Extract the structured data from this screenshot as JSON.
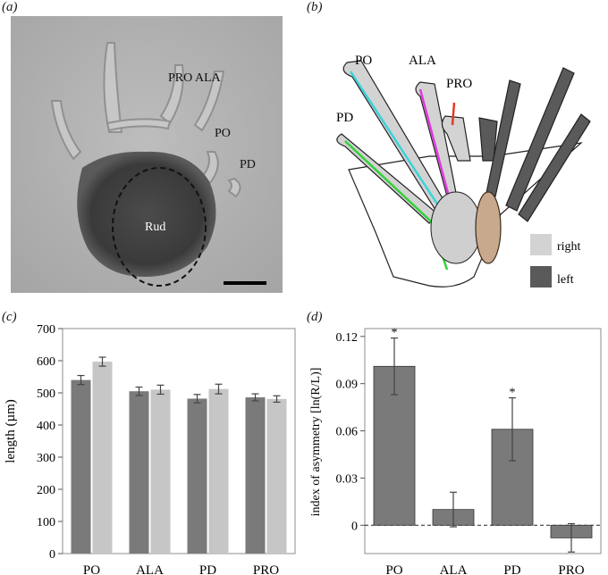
{
  "panels": {
    "a": "(a)",
    "b": "(b)",
    "c": "(c)",
    "d": "(d)"
  },
  "photo": {
    "labels": {
      "pro_ala": "PRO ALA",
      "po": "PO",
      "pd": "PD",
      "rud": "Rud"
    }
  },
  "schematic": {
    "labels": {
      "po": "PO",
      "ala": "ALA",
      "pro": "PRO",
      "pd": "PD"
    },
    "legend": {
      "right": "right",
      "left": "left"
    },
    "arm_colors": {
      "po": "#3ad3d8",
      "ala": "#e03adf",
      "pro": "#e23a23",
      "pd": "#33d13a"
    },
    "shade_colors": {
      "right": "#d3d3d3",
      "left": "#5a5a5a"
    }
  },
  "chart_data": [
    {
      "type": "bar",
      "ylabel": "length (µm)",
      "categories": [
        "PO",
        "ALA",
        "PD",
        "PRO"
      ],
      "ylim": [
        0,
        700
      ],
      "yticks": [
        "0",
        "100",
        "200",
        "300",
        "400",
        "500",
        "600",
        "700"
      ],
      "series": [
        {
          "color": "#7a7a7a",
          "values": [
            540,
            505,
            482,
            486
          ],
          "errors": [
            14,
            13,
            13,
            11
          ]
        },
        {
          "color": "#c6c6c6",
          "values": [
            597,
            510,
            512,
            481
          ],
          "errors": [
            14,
            14,
            15,
            10
          ]
        }
      ]
    },
    {
      "type": "bar",
      "ylabel": "index of asymmetry [ln(R/L)]",
      "categories": [
        "PO",
        "ALA",
        "PD",
        "PRO"
      ],
      "ylim": [
        -0.018,
        0.125
      ],
      "yticks": [
        "0",
        "0.03",
        "0.06",
        "0.09",
        "0.12"
      ],
      "values": [
        0.101,
        0.01,
        0.061,
        -0.008
      ],
      "errors": [
        0.018,
        0.011,
        0.02,
        0.009
      ],
      "annotations": [
        "*",
        "",
        "*",
        ""
      ],
      "color": "#7a7a7a"
    }
  ]
}
